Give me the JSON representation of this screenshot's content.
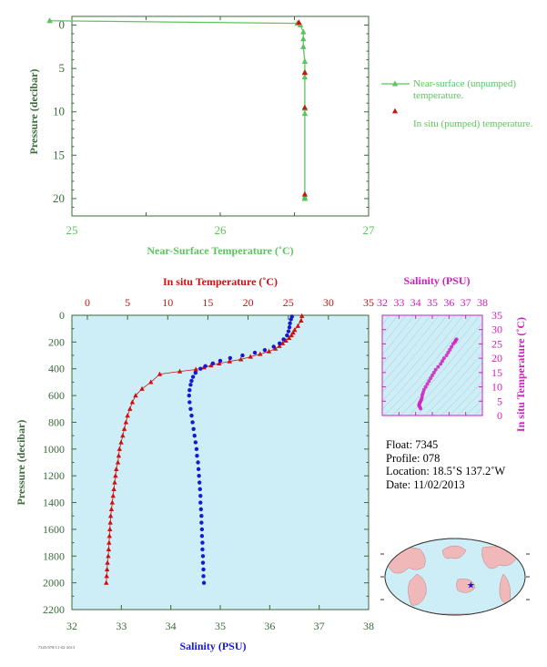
{
  "colors": {
    "green": "#5cc45c",
    "red": "#d01010",
    "blue": "#1818d0",
    "magenta": "#d020c0",
    "axis_dark": "#3a6a3a",
    "panel_bg": "#cdeef7"
  },
  "chart_data": [
    {
      "id": "near-surface",
      "type": "line",
      "xlabel": "Near-Surface Temperature (˚C)",
      "ylabel": "Pressure (decibar)",
      "xlim": [
        25,
        27
      ],
      "ylim": [
        22,
        -1
      ],
      "xticks": [
        "25",
        "25.5",
        "26",
        "26.5",
        "27"
      ],
      "yticks": [
        "0",
        "5",
        "10",
        "15",
        "20"
      ],
      "series": [
        {
          "name": "Near-surface (unpumped) temperature.",
          "color": "#5cc45c",
          "points": [
            [
              24.85,
              -0.5
            ],
            [
              26.52,
              -0.2
            ],
            [
              26.54,
              0.0
            ],
            [
              26.56,
              0.8
            ],
            [
              26.56,
              1.6
            ],
            [
              26.56,
              2.5
            ],
            [
              26.57,
              4.2
            ],
            [
              26.57,
              5.4
            ],
            [
              26.57,
              6.0
            ],
            [
              26.57,
              9.6
            ],
            [
              26.57,
              10.2
            ],
            [
              26.57,
              19.8
            ],
            [
              26.57,
              20.0
            ]
          ]
        },
        {
          "name": "In situ (pumped) temperature.",
          "color": "#d01010",
          "points": [
            [
              26.53,
              -0.3
            ],
            [
              26.57,
              5.5
            ],
            [
              26.57,
              9.5
            ],
            [
              26.57,
              19.5
            ]
          ]
        }
      ]
    },
    {
      "id": "profile",
      "type": "scatter",
      "ylabel": "Pressure (decibar)",
      "ylim": [
        2200,
        0
      ],
      "yticks": [
        "0",
        "200",
        "400",
        "600",
        "800",
        "1000",
        "1200",
        "1400",
        "1600",
        "1800",
        "2000",
        "2200"
      ],
      "temperature": {
        "label": "In situ Temperature (˚C)",
        "xlim": [
          0,
          35
        ],
        "xticks": [
          "0",
          "5",
          "10",
          "15",
          "20",
          "25",
          "30",
          "35"
        ],
        "points": [
          [
            26.7,
            5
          ],
          [
            26.6,
            40
          ],
          [
            26.2,
            80
          ],
          [
            25.8,
            110
          ],
          [
            25.6,
            130
          ],
          [
            25.4,
            150
          ],
          [
            25.1,
            170
          ],
          [
            24.7,
            190
          ],
          [
            24.3,
            210
          ],
          [
            23.9,
            230
          ],
          [
            23.4,
            250
          ],
          [
            22.6,
            270
          ],
          [
            21.5,
            290
          ],
          [
            20.3,
            310
          ],
          [
            19.1,
            330
          ],
          [
            17.7,
            345
          ],
          [
            16.4,
            360
          ],
          [
            15.4,
            375
          ],
          [
            14.5,
            390
          ],
          [
            13.5,
            405
          ],
          [
            11.5,
            420
          ],
          [
            9.0,
            440
          ],
          [
            7.9,
            500
          ],
          [
            6.8,
            550
          ],
          [
            6.0,
            600
          ],
          [
            5.6,
            650
          ],
          [
            5.3,
            700
          ],
          [
            5.0,
            750
          ],
          [
            4.8,
            800
          ],
          [
            4.6,
            850
          ],
          [
            4.4,
            900
          ],
          [
            4.2,
            950
          ],
          [
            4.0,
            1000
          ],
          [
            3.9,
            1050
          ],
          [
            3.8,
            1100
          ],
          [
            3.6,
            1150
          ],
          [
            3.5,
            1200
          ],
          [
            3.4,
            1250
          ],
          [
            3.3,
            1300
          ],
          [
            3.2,
            1350
          ],
          [
            3.1,
            1400
          ],
          [
            3.0,
            1450
          ],
          [
            2.9,
            1500
          ],
          [
            2.85,
            1550
          ],
          [
            2.8,
            1600
          ],
          [
            2.75,
            1650
          ],
          [
            2.7,
            1700
          ],
          [
            2.65,
            1750
          ],
          [
            2.6,
            1800
          ],
          [
            2.5,
            1850
          ],
          [
            2.45,
            1900
          ],
          [
            2.4,
            1950
          ],
          [
            2.35,
            2000
          ]
        ]
      },
      "salinity": {
        "label": "Salinity (PSU)",
        "xlim": [
          32,
          38
        ],
        "xticks": [
          "32",
          "33",
          "34",
          "35",
          "36",
          "37",
          "38"
        ],
        "points": [
          [
            36.45,
            10
          ],
          [
            36.43,
            30
          ],
          [
            36.41,
            60
          ],
          [
            36.4,
            90
          ],
          [
            36.38,
            120
          ],
          [
            36.35,
            150
          ],
          [
            36.28,
            180
          ],
          [
            36.2,
            210
          ],
          [
            36.08,
            235
          ],
          [
            35.9,
            260
          ],
          [
            35.7,
            280
          ],
          [
            35.45,
            300
          ],
          [
            35.2,
            320
          ],
          [
            35.0,
            340
          ],
          [
            34.85,
            360
          ],
          [
            34.7,
            380
          ],
          [
            34.6,
            400
          ],
          [
            34.5,
            430
          ],
          [
            34.45,
            460
          ],
          [
            34.42,
            490
          ],
          [
            34.4,
            520
          ],
          [
            34.38,
            560
          ],
          [
            34.37,
            600
          ],
          [
            34.38,
            650
          ],
          [
            34.4,
            700
          ],
          [
            34.42,
            750
          ],
          [
            34.44,
            800
          ],
          [
            34.46,
            850
          ],
          [
            34.48,
            900
          ],
          [
            34.5,
            950
          ],
          [
            34.52,
            1000
          ],
          [
            34.53,
            1050
          ],
          [
            34.55,
            1100
          ],
          [
            34.56,
            1150
          ],
          [
            34.57,
            1200
          ],
          [
            34.58,
            1250
          ],
          [
            34.59,
            1300
          ],
          [
            34.6,
            1350
          ],
          [
            34.6,
            1400
          ],
          [
            34.61,
            1450
          ],
          [
            34.62,
            1500
          ],
          [
            34.62,
            1550
          ],
          [
            34.63,
            1600
          ],
          [
            34.63,
            1650
          ],
          [
            34.64,
            1700
          ],
          [
            34.64,
            1750
          ],
          [
            34.65,
            1800
          ],
          [
            34.65,
            1850
          ],
          [
            34.66,
            1900
          ],
          [
            34.66,
            1950
          ],
          [
            34.67,
            2000
          ]
        ]
      }
    },
    {
      "id": "ts-diagram",
      "type": "scatter",
      "xlabel": "Salinity (PSU)",
      "ylabel": "In situ Temperature (˚C)",
      "xlim": [
        32,
        38
      ],
      "ylim": [
        0,
        35
      ],
      "xticks": [
        "32",
        "33",
        "34",
        "35",
        "36",
        "37",
        "38"
      ],
      "yticks": [
        "0",
        "5",
        "10",
        "15",
        "20",
        "25",
        "30",
        "35"
      ],
      "points": [
        [
          34.3,
          2.4
        ],
        [
          34.25,
          3.0
        ],
        [
          34.2,
          3.5
        ],
        [
          34.22,
          4.0
        ],
        [
          34.25,
          4.5
        ],
        [
          34.3,
          5.0
        ],
        [
          34.35,
          5.6
        ],
        [
          34.38,
          6.3
        ],
        [
          34.4,
          7.2
        ],
        [
          34.45,
          8.0
        ],
        [
          34.5,
          9.0
        ],
        [
          34.6,
          10.0
        ],
        [
          34.7,
          11.0
        ],
        [
          34.8,
          12.0
        ],
        [
          34.9,
          13.0
        ],
        [
          35.0,
          14.0
        ],
        [
          35.1,
          15.0
        ],
        [
          35.2,
          16.0
        ],
        [
          35.35,
          17.0
        ],
        [
          35.5,
          18.0
        ],
        [
          35.6,
          19.0
        ],
        [
          35.7,
          20.0
        ],
        [
          35.85,
          21.0
        ],
        [
          35.95,
          22.0
        ],
        [
          36.05,
          23.0
        ],
        [
          36.15,
          24.0
        ],
        [
          36.25,
          25.0
        ],
        [
          36.35,
          25.6
        ],
        [
          36.4,
          26.2
        ],
        [
          36.45,
          26.6
        ]
      ]
    }
  ],
  "info": {
    "float": "Float:  7345",
    "profile": "Profile:  078",
    "location": "Location:  18.5˚S  137.2˚W",
    "date": "Date:  11/02/2013"
  },
  "map": {
    "marker": {
      "lat": -18.5,
      "lon": -137.2
    },
    "land_color": "#f0b8b8",
    "ocean_color": "#cdeef7"
  },
  "stamp": "7345/078/11-02-2013"
}
